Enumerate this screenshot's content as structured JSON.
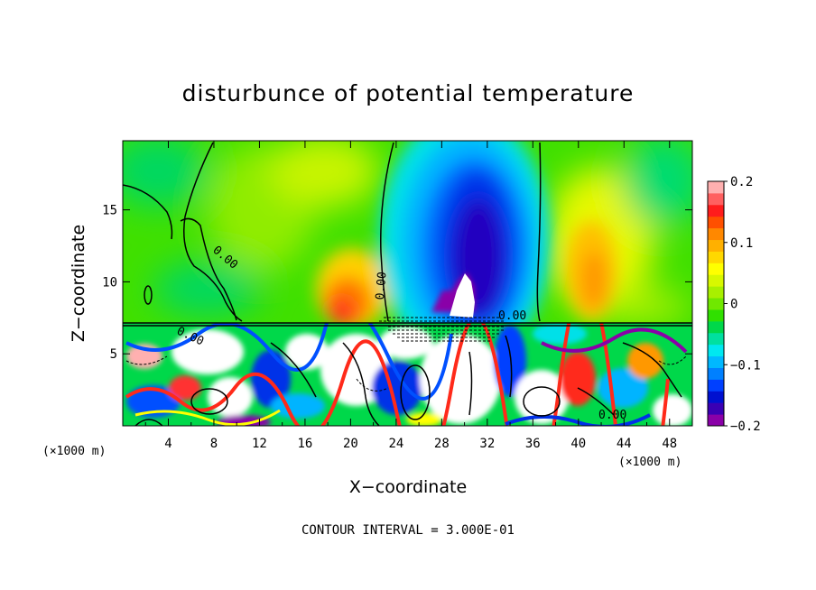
{
  "chart_data": {
    "type": "heatmap",
    "title": "disturbunce of potential temperature",
    "xlabel": "X−coordinate",
    "ylabel": "Z−coordinate",
    "x_unit_left": "(×1000 m)",
    "x_unit_right": "(×1000 m)",
    "xlim": [
      0,
      50
    ],
    "ylim": [
      0,
      19.8
    ],
    "x_ticks": [
      4,
      8,
      12,
      16,
      20,
      24,
      28,
      32,
      36,
      40,
      44,
      48
    ],
    "y_ticks": [
      5,
      10,
      15
    ],
    "colorbar": {
      "range": [
        -0.2,
        0.2
      ],
      "ticks": [
        {
          "value": 0.2,
          "label": "0.2"
        },
        {
          "value": 0.1,
          "label": "0.1"
        },
        {
          "value": 0,
          "label": "0"
        },
        {
          "value": -0.1,
          "label": "−0.1"
        },
        {
          "value": -0.2,
          "label": "−0.2"
        }
      ],
      "colors": [
        "#8a00a8",
        "#3a00b4",
        "#0010d0",
        "#0040ff",
        "#0080ff",
        "#00b8ff",
        "#00e8f0",
        "#00e0a0",
        "#00d84a",
        "#30e000",
        "#70e800",
        "#a8f000",
        "#d8f800",
        "#ffff00",
        "#ffd800",
        "#ffb000",
        "#ff8800",
        "#ff5000",
        "#ff1c1c",
        "#ff6060",
        "#ffb0b0"
      ]
    },
    "contour_labels": [
      "0.00",
      "0.00",
      "0.00",
      "0.00",
      "0.00"
    ],
    "footer": "CONTOUR INTERVAL = 3.000E-01"
  }
}
